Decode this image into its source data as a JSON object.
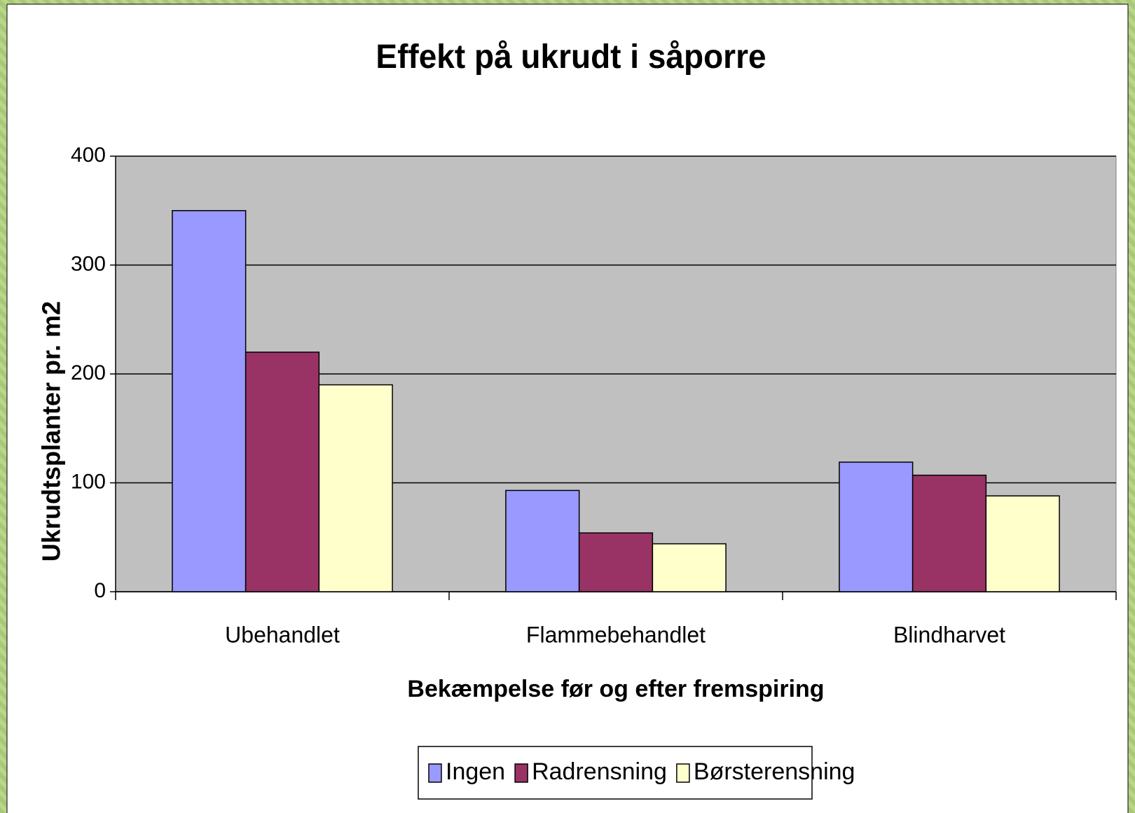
{
  "chart_data": {
    "type": "bar",
    "title": "Effekt på ukrudt i såporre",
    "x_label": "Bekæmpelse før og efter fremspiring",
    "y_label": "Ukrudtsplanter pr. m2",
    "categories": [
      "Ubehandlet",
      "Flammebehandlet",
      "Blindharvet"
    ],
    "series": [
      {
        "name": "Ingen",
        "color": "#9999ff",
        "values": [
          350,
          93,
          119
        ]
      },
      {
        "name": "Radrensning",
        "color": "#993366",
        "values": [
          220,
          54,
          107
        ]
      },
      {
        "name": "Børsterensning",
        "color": "#ffffcc",
        "values": [
          190,
          44,
          88
        ]
      }
    ],
    "ylim": [
      0,
      400
    ],
    "yticks": [
      0,
      100,
      200,
      300,
      400
    ],
    "grid": true,
    "legend": "bottom"
  }
}
